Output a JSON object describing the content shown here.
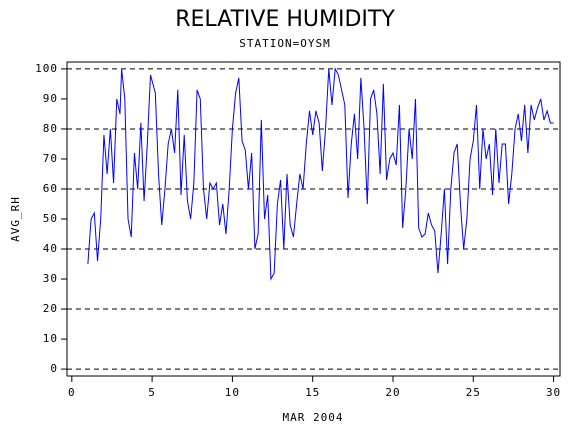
{
  "chart_data": {
    "type": "line",
    "title": "RELATIVE HUMIDITY",
    "subtitle": "STATION=OYSM",
    "x_label": "MAR 2004",
    "y_label": "AVG_RH",
    "xlim": [
      -0.3,
      30.4
    ],
    "ylim": [
      -2.3,
      102.3
    ],
    "xticks": [
      0,
      5,
      10,
      15,
      20,
      25,
      30
    ],
    "yticks": [
      0,
      10,
      20,
      30,
      40,
      50,
      60,
      70,
      80,
      90,
      100
    ],
    "grid_values": [
      0,
      20,
      40,
      60,
      80,
      100
    ],
    "x": [
      1.0,
      1.2,
      1.4,
      1.6,
      1.8,
      2.0,
      2.2,
      2.4,
      2.6,
      2.8,
      3.0,
      3.1,
      3.3,
      3.5,
      3.7,
      3.9,
      4.1,
      4.3,
      4.5,
      4.7,
      4.9,
      5.2,
      5.4,
      5.6,
      5.8,
      6.0,
      6.2,
      6.4,
      6.6,
      6.8,
      7.0,
      7.2,
      7.4,
      7.6,
      7.8,
      8.0,
      8.2,
      8.4,
      8.6,
      8.8,
      9.0,
      9.2,
      9.4,
      9.6,
      9.8,
      10.0,
      10.2,
      10.4,
      10.6,
      10.8,
      11.0,
      11.2,
      11.4,
      11.6,
      11.8,
      12.0,
      12.2,
      12.4,
      12.6,
      12.8,
      13.0,
      13.2,
      13.4,
      13.6,
      13.8,
      14.0,
      14.2,
      14.4,
      14.6,
      14.8,
      15.0,
      15.2,
      15.4,
      15.6,
      15.8,
      16.0,
      16.2,
      16.4,
      16.6,
      16.8,
      17.0,
      17.2,
      17.4,
      17.6,
      17.8,
      18.0,
      18.2,
      18.4,
      18.6,
      18.8,
      19.0,
      19.2,
      19.4,
      19.6,
      19.8,
      20.0,
      20.2,
      20.4,
      20.6,
      20.8,
      21.0,
      21.2,
      21.4,
      21.6,
      21.8,
      22.0,
      22.2,
      22.4,
      22.6,
      22.8,
      23.0,
      23.2,
      23.4,
      23.6,
      23.8,
      24.0,
      24.2,
      24.4,
      24.6,
      24.8,
      25.0,
      25.2,
      25.4,
      25.6,
      25.8,
      26.0,
      26.2,
      26.4,
      26.6,
      26.8,
      27.0,
      27.2,
      27.4,
      27.6,
      27.8,
      28.0,
      28.2,
      28.4,
      28.6,
      28.8,
      29.0,
      29.2,
      29.4,
      29.6,
      29.8,
      30.0
    ],
    "series": [
      {
        "name": "AVG_RH",
        "color": "#0000ff",
        "values": [
          35,
          50,
          52,
          36,
          50,
          78,
          65,
          80,
          62,
          90,
          85,
          100,
          90,
          50,
          44,
          72,
          60,
          82,
          56,
          75,
          98,
          92,
          65,
          48,
          60,
          75,
          80,
          72,
          93,
          58,
          78,
          56,
          50,
          62,
          93,
          90,
          60,
          50,
          62,
          60,
          62,
          48,
          55,
          45,
          60,
          80,
          92,
          97,
          76,
          73,
          60,
          72,
          40,
          45,
          83,
          50,
          58,
          30,
          32,
          55,
          63,
          40,
          65,
          48,
          44,
          55,
          65,
          60,
          75,
          86,
          78,
          86,
          82,
          66,
          80,
          100,
          88,
          100,
          98,
          93,
          88,
          57,
          75,
          85,
          70,
          97,
          80,
          55,
          90,
          93,
          85,
          65,
          95,
          63,
          70,
          72,
          68,
          88,
          47,
          60,
          80,
          70,
          90,
          47,
          44,
          45,
          52,
          48,
          46,
          32,
          45,
          60,
          35,
          60,
          72,
          75,
          55,
          40,
          50,
          70,
          76,
          88,
          60,
          80,
          70,
          75,
          58,
          80,
          62,
          75,
          75,
          55,
          65,
          80,
          85,
          76,
          88,
          72,
          88,
          83,
          87,
          90,
          83,
          86,
          82,
          82
        ]
      }
    ]
  }
}
